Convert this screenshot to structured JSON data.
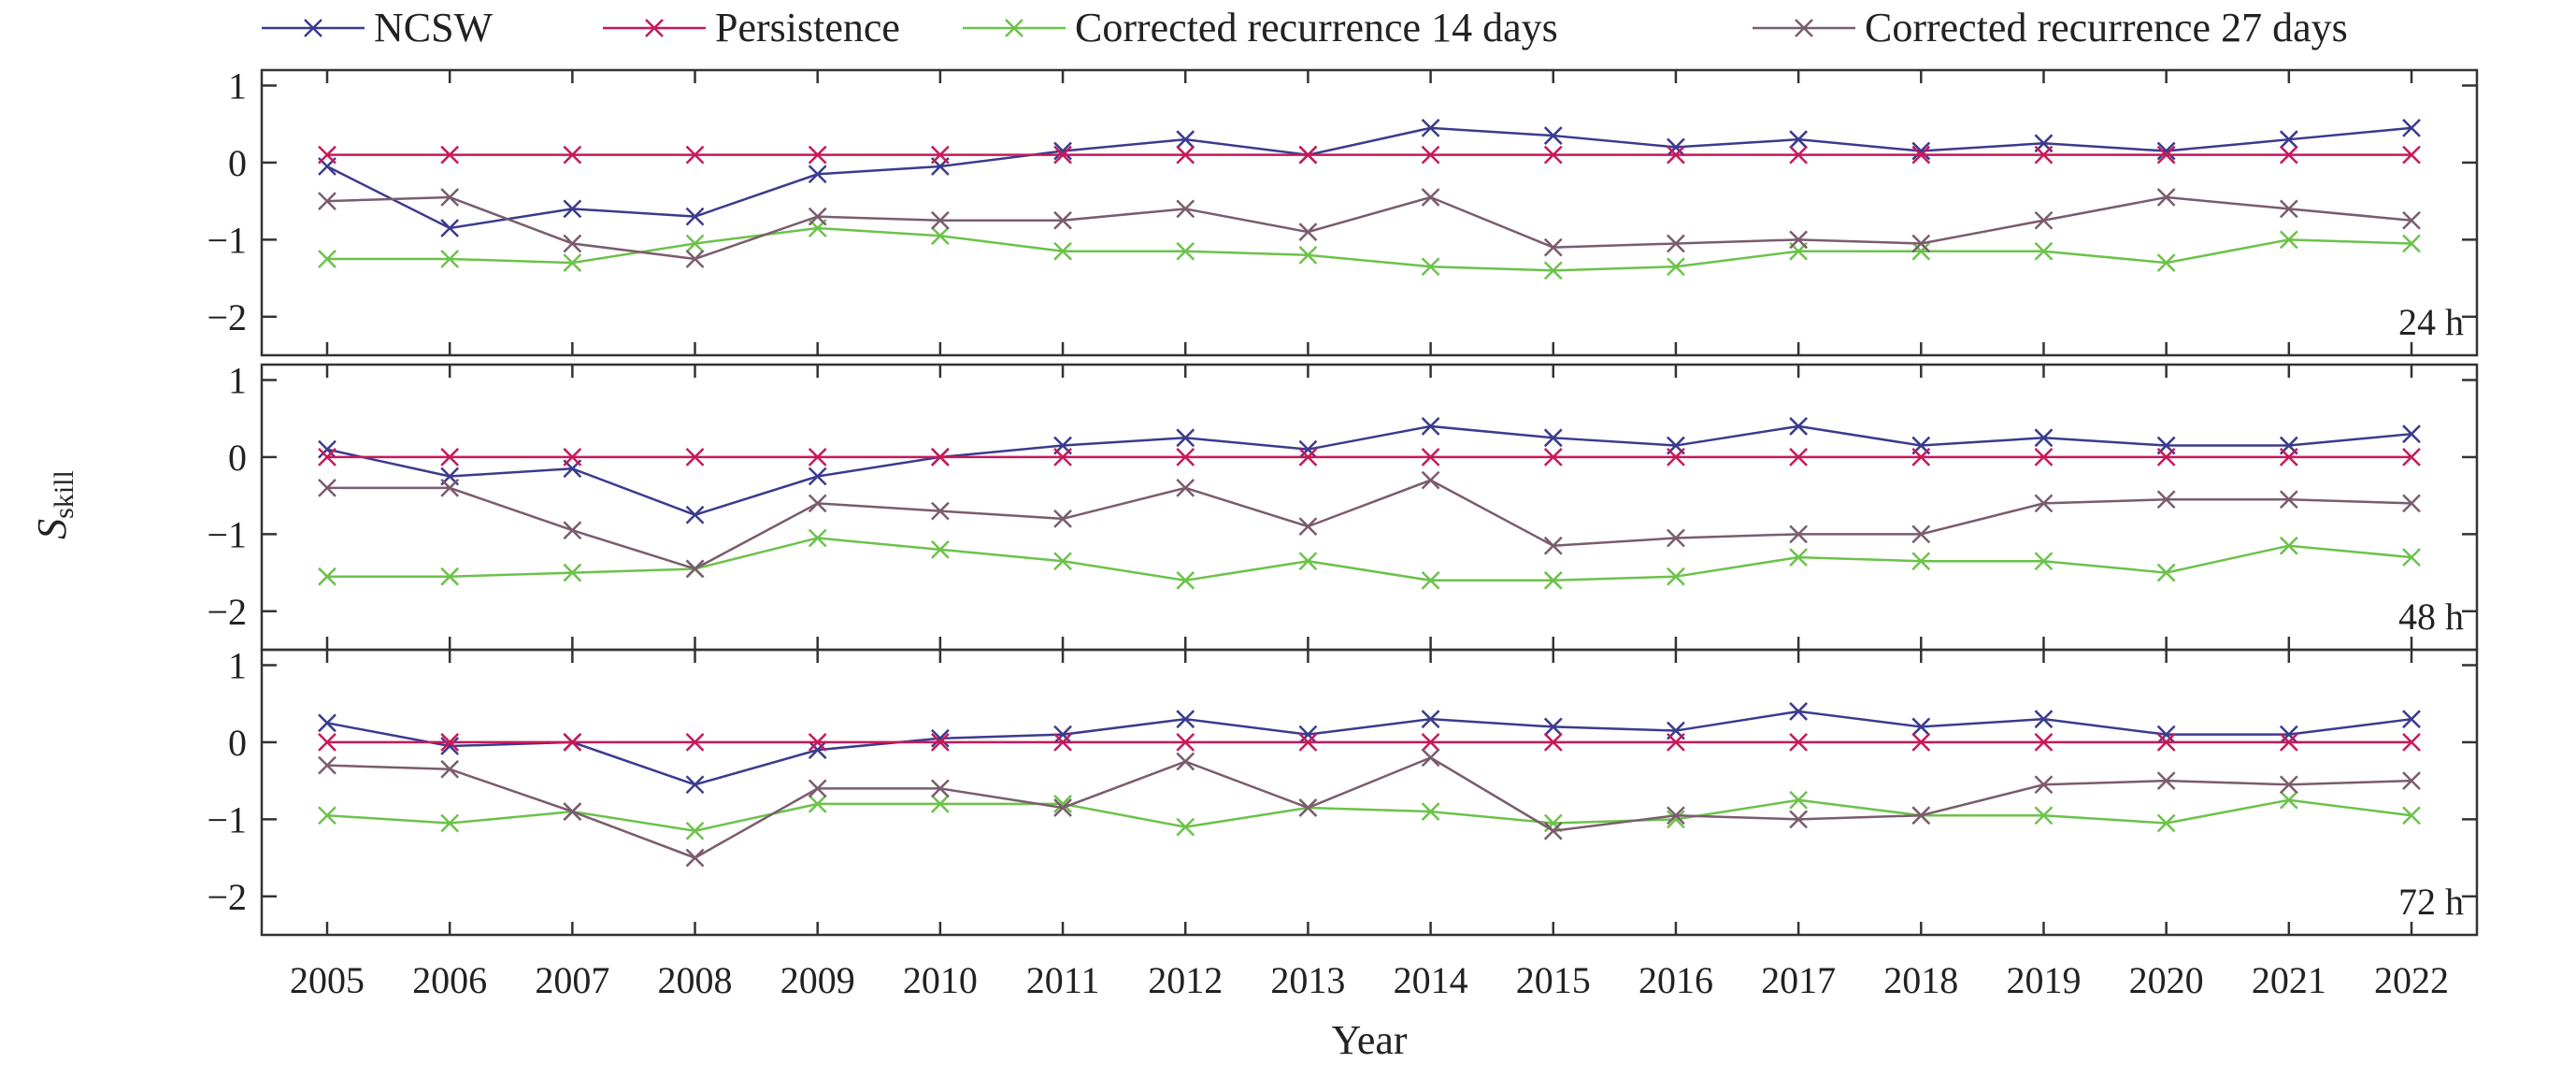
{
  "chart_data": {
    "type": "line",
    "xlabel": "Year",
    "ylabel": "S",
    "ylabel_sub": "skill",
    "x": [
      "2005",
      "2006",
      "2007",
      "2008",
      "2009",
      "2010",
      "2011",
      "2012",
      "2013",
      "2014",
      "2015",
      "2016",
      "2017",
      "2018",
      "2019",
      "2020",
      "2021",
      "2022"
    ],
    "ylim": [
      -2.5,
      1.2
    ],
    "yticks": [
      "1",
      "0",
      "−1",
      "−2"
    ],
    "legend_position": "top",
    "series_styles": [
      {
        "name": "NCSW",
        "color": "#3b3b8f"
      },
      {
        "name": "Persistence",
        "color": "#c8185a"
      },
      {
        "name": "Corrected recurrence 14 days",
        "color": "#6cc24a"
      },
      {
        "name": "Corrected recurrence 27 days",
        "color": "#7a5c6e"
      }
    ],
    "panels": [
      {
        "label": "24 h",
        "series": [
          {
            "name": "NCSW",
            "values": [
              -0.05,
              -0.85,
              -0.6,
              -0.7,
              -0.15,
              -0.05,
              0.15,
              0.3,
              0.1,
              0.45,
              0.35,
              0.2,
              0.3,
              0.15,
              0.25,
              0.15,
              0.3,
              0.45
            ]
          },
          {
            "name": "Persistence",
            "values": [
              0.1,
              0.1,
              0.1,
              0.1,
              0.1,
              0.1,
              0.1,
              0.1,
              0.1,
              0.1,
              0.1,
              0.1,
              0.1,
              0.1,
              0.1,
              0.1,
              0.1,
              0.1
            ]
          },
          {
            "name": "Corrected recurrence 14 days",
            "values": [
              -1.25,
              -1.25,
              -1.3,
              -1.05,
              -0.85,
              -0.95,
              -1.15,
              -1.15,
              -1.2,
              -1.35,
              -1.4,
              -1.35,
              -1.15,
              -1.15,
              -1.15,
              -1.3,
              -1.0,
              -1.05
            ]
          },
          {
            "name": "Corrected recurrence 27 days",
            "values": [
              -0.5,
              -0.45,
              -1.05,
              -1.25,
              -0.7,
              -0.75,
              -0.75,
              -0.6,
              -0.9,
              -0.45,
              -1.1,
              -1.05,
              -1.0,
              -1.05,
              -0.75,
              -0.45,
              -0.6,
              -0.75
            ]
          }
        ]
      },
      {
        "label": "48 h",
        "series": [
          {
            "name": "NCSW",
            "values": [
              0.1,
              -0.25,
              -0.15,
              -0.75,
              -0.25,
              0.0,
              0.15,
              0.25,
              0.1,
              0.4,
              0.25,
              0.15,
              0.4,
              0.15,
              0.25,
              0.15,
              0.15,
              0.3
            ]
          },
          {
            "name": "Persistence",
            "values": [
              0,
              0,
              0,
              0,
              0,
              0,
              0,
              0,
              0,
              0,
              0,
              0,
              0,
              0,
              0,
              0,
              0,
              0
            ]
          },
          {
            "name": "Corrected recurrence 14 days",
            "values": [
              -1.55,
              -1.55,
              -1.5,
              -1.45,
              -1.05,
              -1.2,
              -1.35,
              -1.6,
              -1.35,
              -1.6,
              -1.6,
              -1.55,
              -1.3,
              -1.35,
              -1.35,
              -1.5,
              -1.15,
              -1.3
            ]
          },
          {
            "name": "Corrected recurrence 27 days",
            "values": [
              -0.4,
              -0.4,
              -0.95,
              -1.45,
              -0.6,
              -0.7,
              -0.8,
              -0.4,
              -0.9,
              -0.3,
              -1.15,
              -1.05,
              -1.0,
              -1.0,
              -0.6,
              -0.55,
              -0.55,
              -0.6
            ]
          }
        ]
      },
      {
        "label": "72 h",
        "series": [
          {
            "name": "NCSW",
            "values": [
              0.25,
              -0.05,
              0.0,
              -0.55,
              -0.1,
              0.05,
              0.1,
              0.3,
              0.1,
              0.3,
              0.2,
              0.15,
              0.4,
              0.2,
              0.3,
              0.1,
              0.1,
              0.3
            ]
          },
          {
            "name": "Persistence",
            "values": [
              0,
              0,
              0,
              0,
              0,
              0,
              0,
              0,
              0,
              0,
              0,
              0,
              0,
              0,
              0,
              0,
              0,
              0
            ]
          },
          {
            "name": "Corrected recurrence 14 days",
            "values": [
              -0.95,
              -1.05,
              -0.9,
              -1.15,
              -0.8,
              -0.8,
              -0.8,
              -1.1,
              -0.85,
              -0.9,
              -1.05,
              -1.0,
              -0.75,
              -0.95,
              -0.95,
              -1.05,
              -0.75,
              -0.95
            ]
          },
          {
            "name": "Corrected recurrence 27 days",
            "values": [
              -0.3,
              -0.35,
              -0.9,
              -1.5,
              -0.6,
              -0.6,
              -0.85,
              -0.25,
              -0.85,
              -0.2,
              -1.15,
              -0.95,
              -1.0,
              -0.95,
              -0.55,
              -0.5,
              -0.55,
              -0.5
            ]
          }
        ]
      }
    ]
  }
}
